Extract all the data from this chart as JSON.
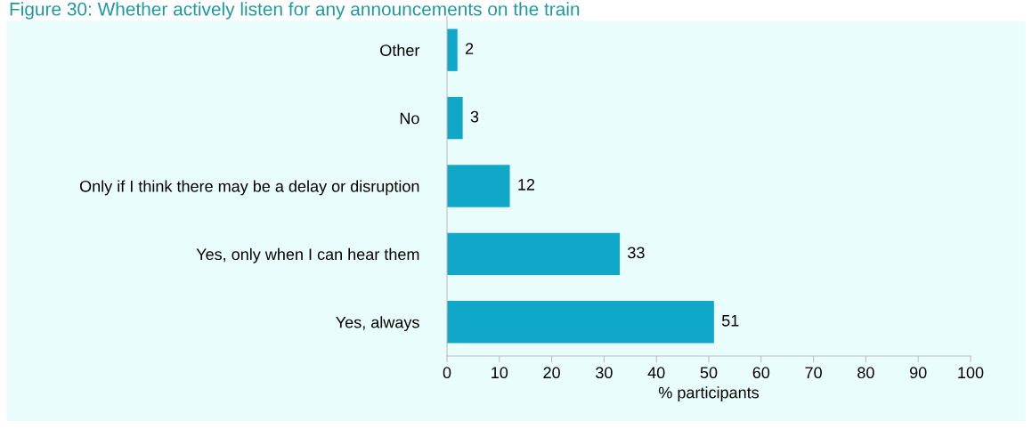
{
  "chart_data": {
    "type": "bar",
    "orientation": "horizontal",
    "title": "Figure 30: Whether actively listen for any announcements on the train",
    "categories": [
      "Other",
      "No",
      "Only if I think there may be a delay or disruption",
      "Yes, only when I can hear them",
      "Yes, always"
    ],
    "values": [
      2,
      3,
      12,
      33,
      51
    ],
    "color": "#0fa8c9",
    "data_labels": true,
    "xlim": [
      0,
      100
    ],
    "xticks": [
      0,
      10,
      20,
      30,
      40,
      50,
      60,
      70,
      80,
      90,
      100
    ],
    "xlabel": "% participants",
    "grid": false
  }
}
